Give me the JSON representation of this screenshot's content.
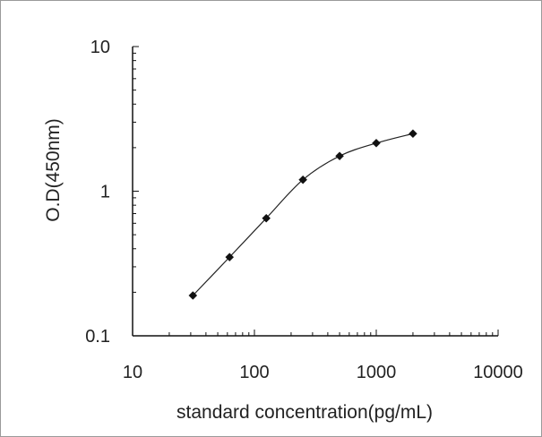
{
  "chart_data": {
    "type": "scatter",
    "xlabel": "standard concentration(pg/mL)",
    "ylabel": "O.D(450nm)",
    "xscale": "log",
    "yscale": "log",
    "xlim": [
      10,
      10000
    ],
    "ylim": [
      0.1,
      10
    ],
    "xticks": [
      10,
      100,
      1000,
      10000
    ],
    "xtick_labels": [
      "10",
      "100",
      "1000",
      "10000"
    ],
    "yticks": [
      0.1,
      1,
      10
    ],
    "ytick_labels": [
      "0.1",
      "1",
      "10"
    ],
    "grid": false,
    "series": [
      {
        "x": [
          31.25,
          62.5,
          125,
          250,
          500,
          1000,
          2000
        ],
        "y": [
          0.19,
          0.35,
          0.65,
          1.2,
          1.75,
          2.15,
          2.5
        ],
        "line": "smooth",
        "marker": "diamond"
      }
    ]
  }
}
